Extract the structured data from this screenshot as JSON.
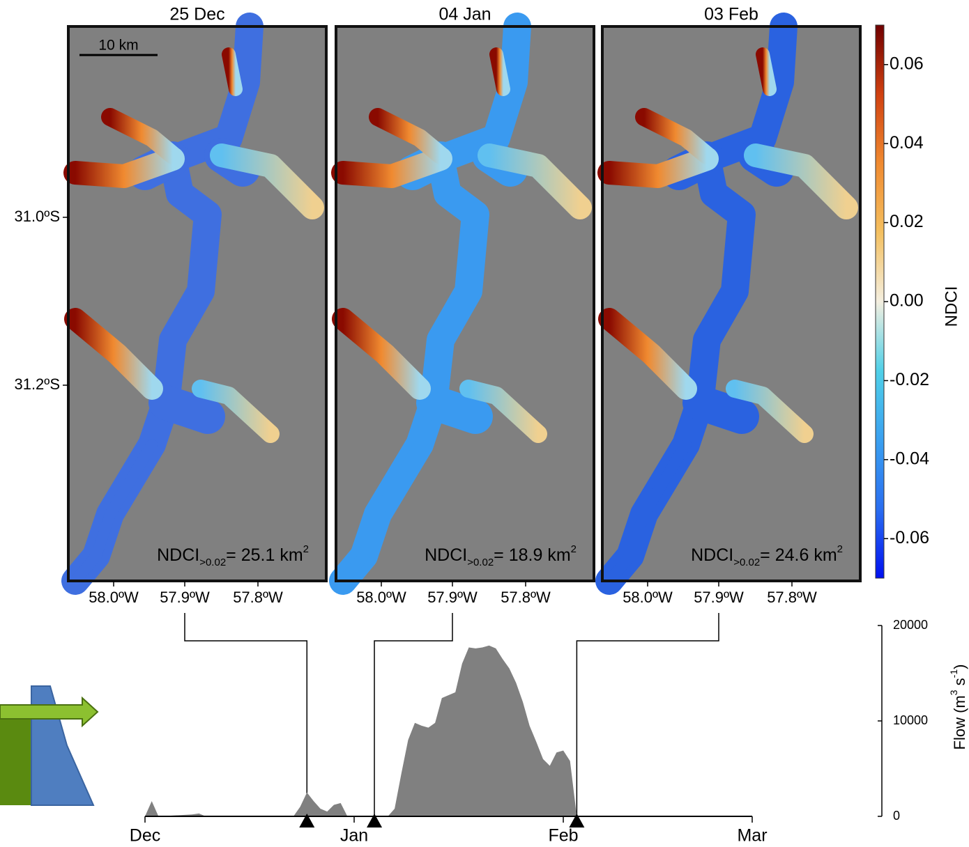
{
  "maps": {
    "scale_bar": "10 km",
    "lat_ticks": [
      "31.0ºS",
      "31.2ºS"
    ],
    "lon_ticks": [
      "58.0ºW",
      "57.9ºW",
      "57.8ºW"
    ],
    "panels": [
      {
        "title": "25 Dec",
        "stat": {
          "name": "NDCI",
          "subscript": ">0.02",
          "text": "= 25.1 km",
          "superscript": "2"
        }
      },
      {
        "title": "04 Jan",
        "stat": {
          "name": "NDCI",
          "subscript": ">0.02",
          "text": "= 18.9 km",
          "superscript": "2"
        }
      },
      {
        "title": "03 Feb",
        "stat": {
          "name": "NDCI",
          "subscript": ">0.02",
          "text": "= 24.6 km",
          "superscript": "2"
        }
      }
    ]
  },
  "colorbar": {
    "label": "NDCI",
    "lim": [
      -0.07,
      0.07
    ],
    "ticks": [
      0.06,
      0.04,
      0.02,
      {
        "value": 0,
        "label": "0.00"
      },
      -0.02,
      -0.04,
      -0.06
    ],
    "colors": [
      "#0010f0",
      "#2a6ef0",
      "#3aa0f0",
      "#50d0e8",
      "#f4efe0",
      "#f4c060",
      "#f08a30",
      "#d04010",
      "#700000"
    ]
  },
  "chart_data": {
    "type": "area",
    "y_label": [
      "Flow (m",
      "3",
      " s",
      "-1",
      ")"
    ],
    "color": "#808080",
    "x": [
      0,
      1,
      2,
      7,
      8,
      9,
      22,
      23,
      24,
      25,
      26,
      27,
      28,
      29,
      30,
      36,
      37,
      38,
      39,
      40,
      41,
      42,
      43,
      44,
      45,
      46,
      47,
      48,
      49,
      50,
      51,
      52,
      53,
      54,
      55,
      56,
      57,
      58,
      59,
      60,
      61,
      62,
      63,
      64,
      90
    ],
    "values": [
      0,
      1600,
      0,
      200,
      300,
      0,
      0,
      1000,
      2500,
      1600,
      800,
      500,
      1200,
      1400,
      0,
      0,
      800,
      4500,
      8000,
      9800,
      9500,
      9300,
      9800,
      12400,
      12700,
      13000,
      16000,
      17700,
      17600,
      17700,
      17900,
      17600,
      16500,
      15500,
      14000,
      12000,
      9500,
      7800,
      6000,
      5300,
      6700,
      6900,
      5800,
      0,
      0
    ],
    "xlim": [
      0,
      90
    ],
    "xticks": [
      {
        "value": 0,
        "label": "Dec"
      },
      {
        "value": 31,
        "label": "Jan"
      },
      {
        "value": 62,
        "label": "Feb"
      },
      {
        "value": 90,
        "label": "Mar"
      }
    ],
    "ylim": [
      0,
      20000
    ],
    "yticks": [
      0,
      10000,
      20000
    ],
    "markers": [
      24,
      34,
      64
    ]
  }
}
